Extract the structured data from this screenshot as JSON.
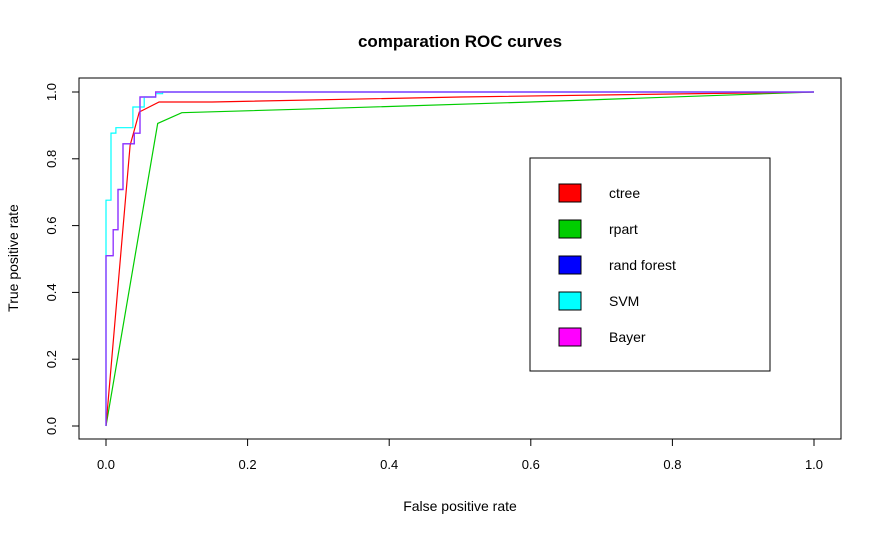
{
  "chart_data": {
    "type": "line",
    "title": "comparation ROC curves",
    "xlabel": "False positive rate",
    "ylabel": "True positive rate",
    "xlim": [
      0,
      1
    ],
    "ylim": [
      0,
      1
    ],
    "xticks": [
      "0.0",
      "0.2",
      "0.4",
      "0.6",
      "0.8",
      "1.0"
    ],
    "yticks": [
      "0.0",
      "0.2",
      "0.4",
      "0.6",
      "0.8",
      "1.0"
    ],
    "grid": false,
    "legend_position": "right",
    "legend": [
      {
        "label": "ctree",
        "color": "#ff0000"
      },
      {
        "label": "rpart",
        "color": "#00cd00"
      },
      {
        "label": "rand forest",
        "color": "#0000ff"
      },
      {
        "label": "SVM",
        "color": "#00ffff"
      },
      {
        "label": "Bayer",
        "color": "#ff00ff"
      }
    ],
    "series": [
      {
        "name": "rpart",
        "color": "#00cd00",
        "points": [
          [
            0,
            0
          ],
          [
            0.073,
            0.906
          ],
          [
            0.107,
            0.938
          ],
          [
            0.3,
            0.95
          ],
          [
            0.6,
            0.97
          ],
          [
            1.0,
            1.0
          ]
        ]
      },
      {
        "name": "ctree",
        "color": "#ff0000",
        "points": [
          [
            0,
            0
          ],
          [
            0.034,
            0.84
          ],
          [
            0.047,
            0.94
          ],
          [
            0.075,
            0.97
          ],
          [
            0.15,
            0.97
          ],
          [
            0.5,
            0.985
          ],
          [
            1.0,
            1.0
          ]
        ]
      },
      {
        "name": "rand forest",
        "color": "#0000ff",
        "points": [
          [
            0,
            0
          ],
          [
            0,
            0.51
          ],
          [
            0.01,
            0.51
          ],
          [
            0.01,
            0.588
          ],
          [
            0.017,
            0.588
          ],
          [
            0.017,
            0.708
          ],
          [
            0.024,
            0.708
          ],
          [
            0.024,
            0.845
          ],
          [
            0.04,
            0.845
          ],
          [
            0.04,
            0.877
          ],
          [
            0.048,
            0.877
          ],
          [
            0.048,
            0.985
          ],
          [
            0.07,
            0.985
          ],
          [
            0.07,
            1.0
          ],
          [
            1.0,
            1.0
          ]
        ]
      },
      {
        "name": "SVM",
        "color": "#00ffff",
        "points": [
          [
            0,
            0
          ],
          [
            0,
            0.676
          ],
          [
            0.007,
            0.676
          ],
          [
            0.007,
            0.877
          ],
          [
            0.014,
            0.877
          ],
          [
            0.014,
            0.893
          ],
          [
            0.038,
            0.893
          ],
          [
            0.038,
            0.955
          ],
          [
            0.054,
            0.955
          ],
          [
            0.054,
            0.985
          ],
          [
            0.07,
            0.985
          ],
          [
            0.07,
            0.995
          ],
          [
            0.08,
            0.995
          ],
          [
            0.08,
            1.0
          ],
          [
            1.0,
            1.0
          ]
        ]
      },
      {
        "name": "Bayer",
        "color": "#9b30ff",
        "points": [
          [
            0,
            0
          ],
          [
            0,
            0.51
          ],
          [
            0.01,
            0.51
          ],
          [
            0.01,
            0.588
          ],
          [
            0.017,
            0.588
          ],
          [
            0.017,
            0.708
          ],
          [
            0.024,
            0.708
          ],
          [
            0.024,
            0.845
          ],
          [
            0.04,
            0.845
          ],
          [
            0.04,
            0.877
          ],
          [
            0.048,
            0.877
          ],
          [
            0.048,
            0.985
          ],
          [
            0.07,
            0.985
          ],
          [
            0.07,
            1.0
          ],
          [
            1.0,
            1.0
          ]
        ]
      }
    ]
  }
}
